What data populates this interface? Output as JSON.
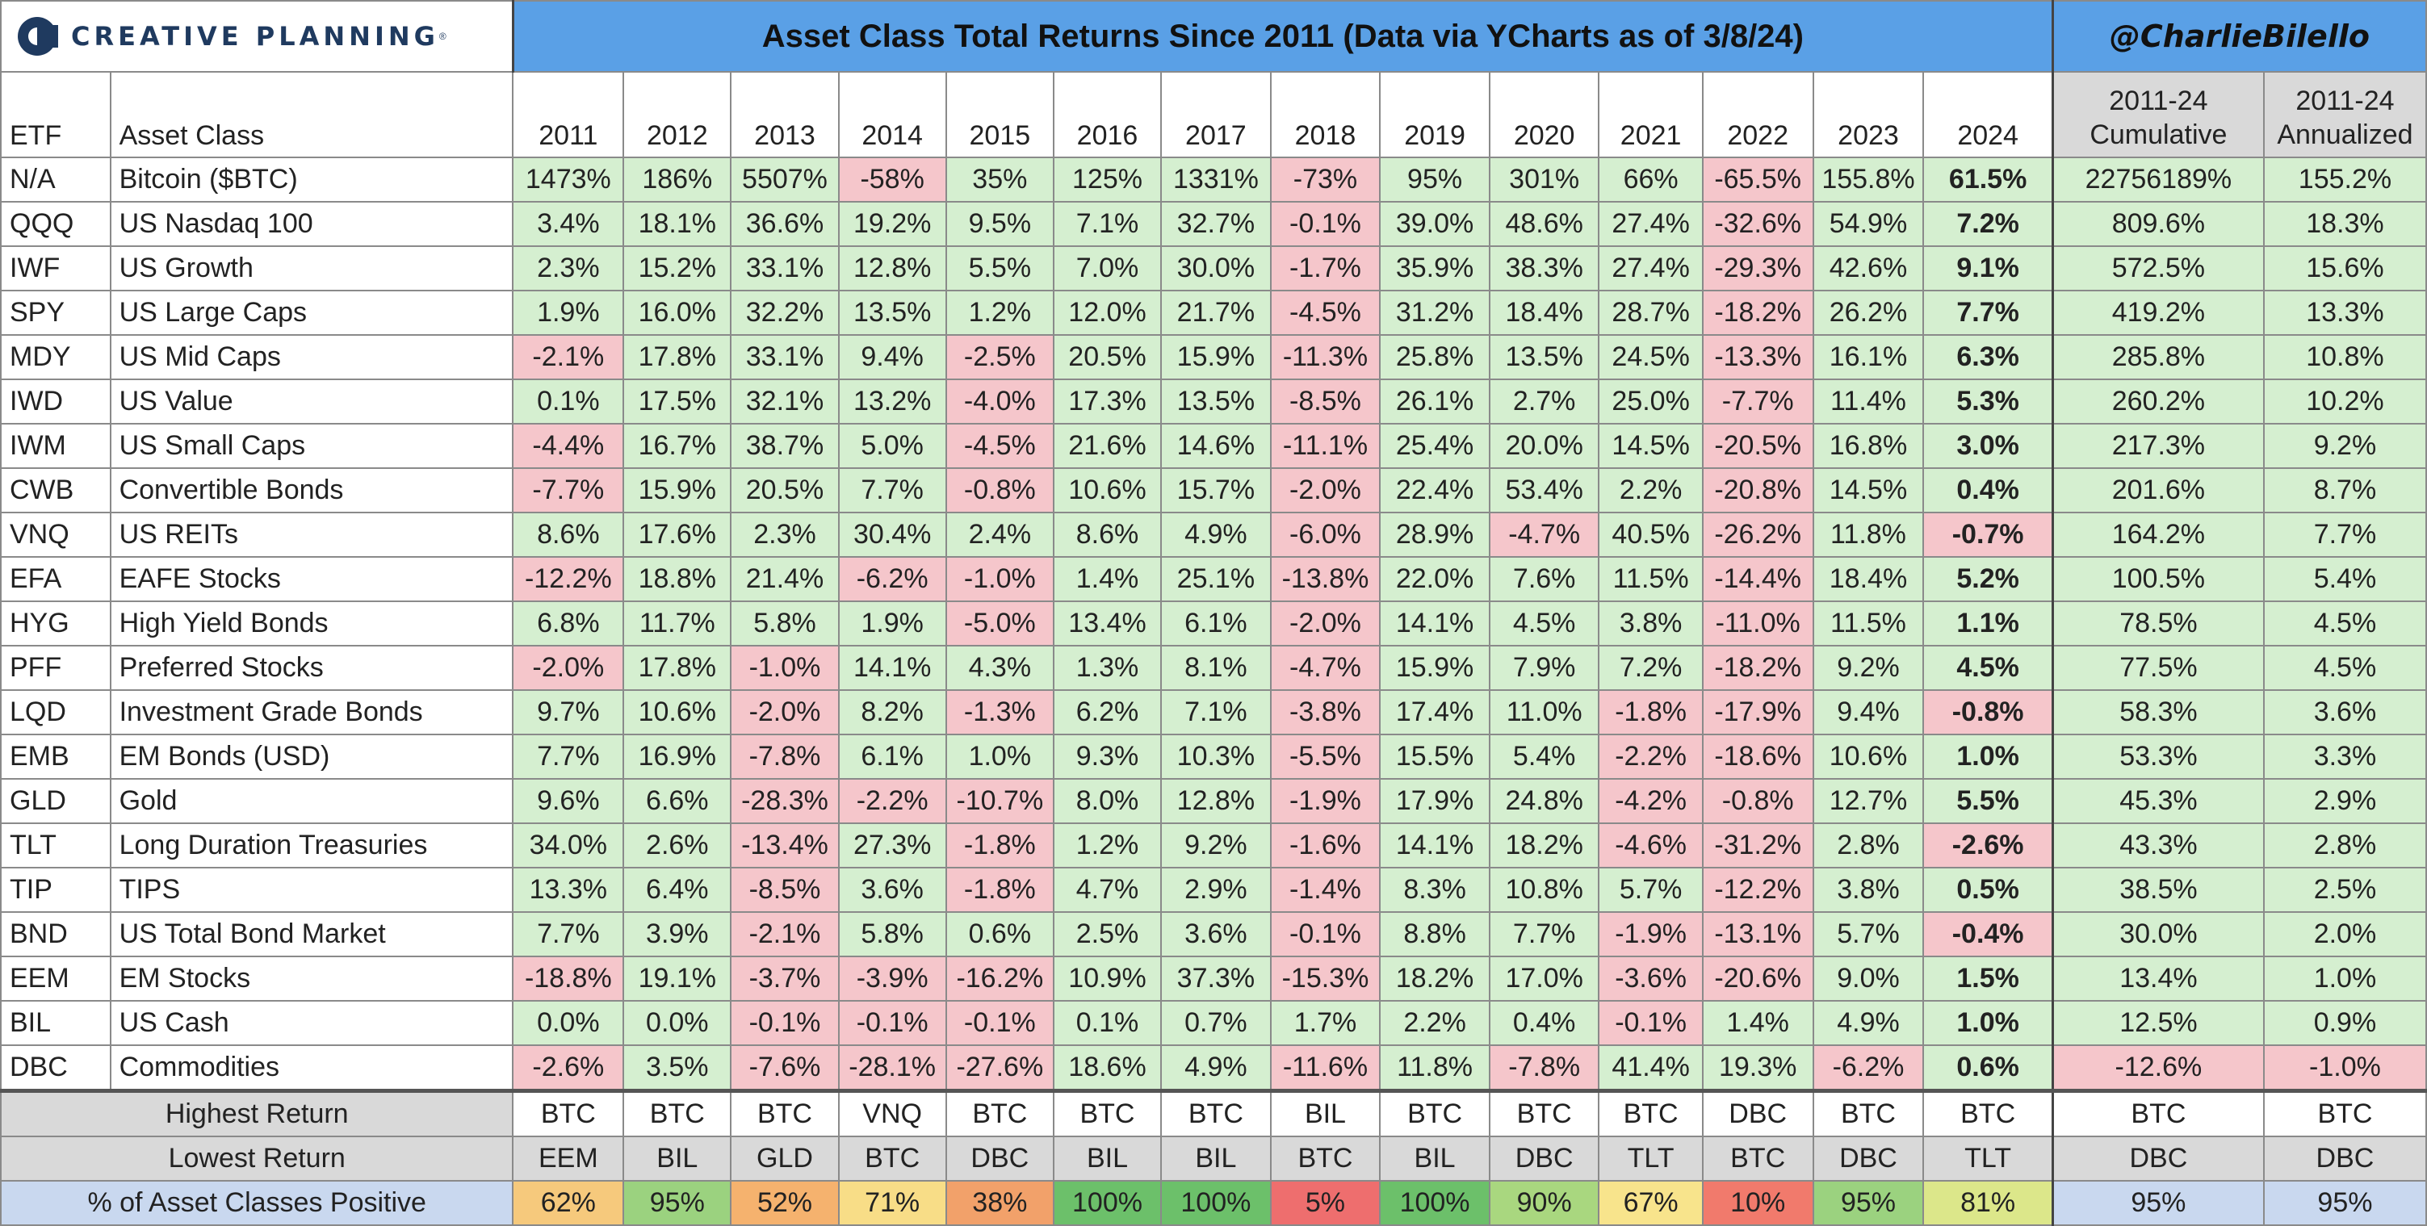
{
  "header": {
    "logo_text": "CREATIVE PLANNING",
    "logo_tm": "®",
    "title": "Asset Class Total Returns Since 2011 (Data via YCharts as of 3/8/24)",
    "handle": "@CharlieBilello"
  },
  "columns": {
    "etf": "ETF",
    "asset_class": "Asset Class",
    "years": [
      "2011",
      "2012",
      "2013",
      "2014",
      "2015",
      "2016",
      "2017",
      "2018",
      "2019",
      "2020",
      "2021",
      "2022",
      "2023",
      "2024"
    ],
    "cumulative": [
      "2011-24",
      "Cumulative"
    ],
    "annualized": [
      "2011-24",
      "Annualized"
    ]
  },
  "chart_data": {
    "type": "table",
    "title": "Asset Class Total Returns Since 2011 (Data via YCharts as of 3/8/24)",
    "rows": [
      {
        "etf": "N/A",
        "asset": "Bitcoin ($BTC)",
        "values": [
          "1473%",
          "186%",
          "5507%",
          "-58%",
          "35%",
          "125%",
          "1331%",
          "-73%",
          "95%",
          "301%",
          "66%",
          "-65.5%",
          "155.8%",
          "61.5%"
        ],
        "cumulative": "22756189%",
        "annualized": "155.2%"
      },
      {
        "etf": "QQQ",
        "asset": "US Nasdaq 100",
        "values": [
          "3.4%",
          "18.1%",
          "36.6%",
          "19.2%",
          "9.5%",
          "7.1%",
          "32.7%",
          "-0.1%",
          "39.0%",
          "48.6%",
          "27.4%",
          "-32.6%",
          "54.9%",
          "7.2%"
        ],
        "cumulative": "809.6%",
        "annualized": "18.3%"
      },
      {
        "etf": "IWF",
        "asset": "US Growth",
        "values": [
          "2.3%",
          "15.2%",
          "33.1%",
          "12.8%",
          "5.5%",
          "7.0%",
          "30.0%",
          "-1.7%",
          "35.9%",
          "38.3%",
          "27.4%",
          "-29.3%",
          "42.6%",
          "9.1%"
        ],
        "cumulative": "572.5%",
        "annualized": "15.6%"
      },
      {
        "etf": "SPY",
        "asset": "US Large Caps",
        "values": [
          "1.9%",
          "16.0%",
          "32.2%",
          "13.5%",
          "1.2%",
          "12.0%",
          "21.7%",
          "-4.5%",
          "31.2%",
          "18.4%",
          "28.7%",
          "-18.2%",
          "26.2%",
          "7.7%"
        ],
        "cumulative": "419.2%",
        "annualized": "13.3%"
      },
      {
        "etf": "MDY",
        "asset": "US Mid Caps",
        "values": [
          "-2.1%",
          "17.8%",
          "33.1%",
          "9.4%",
          "-2.5%",
          "20.5%",
          "15.9%",
          "-11.3%",
          "25.8%",
          "13.5%",
          "24.5%",
          "-13.3%",
          "16.1%",
          "6.3%"
        ],
        "cumulative": "285.8%",
        "annualized": "10.8%"
      },
      {
        "etf": "IWD",
        "asset": "US Value",
        "values": [
          "0.1%",
          "17.5%",
          "32.1%",
          "13.2%",
          "-4.0%",
          "17.3%",
          "13.5%",
          "-8.5%",
          "26.1%",
          "2.7%",
          "25.0%",
          "-7.7%",
          "11.4%",
          "5.3%"
        ],
        "cumulative": "260.2%",
        "annualized": "10.2%"
      },
      {
        "etf": "IWM",
        "asset": "US Small Caps",
        "values": [
          "-4.4%",
          "16.7%",
          "38.7%",
          "5.0%",
          "-4.5%",
          "21.6%",
          "14.6%",
          "-11.1%",
          "25.4%",
          "20.0%",
          "14.5%",
          "-20.5%",
          "16.8%",
          "3.0%"
        ],
        "cumulative": "217.3%",
        "annualized": "9.2%"
      },
      {
        "etf": "CWB",
        "asset": "Convertible Bonds",
        "values": [
          "-7.7%",
          "15.9%",
          "20.5%",
          "7.7%",
          "-0.8%",
          "10.6%",
          "15.7%",
          "-2.0%",
          "22.4%",
          "53.4%",
          "2.2%",
          "-20.8%",
          "14.5%",
          "0.4%"
        ],
        "cumulative": "201.6%",
        "annualized": "8.7%"
      },
      {
        "etf": "VNQ",
        "asset": "US REITs",
        "values": [
          "8.6%",
          "17.6%",
          "2.3%",
          "30.4%",
          "2.4%",
          "8.6%",
          "4.9%",
          "-6.0%",
          "28.9%",
          "-4.7%",
          "40.5%",
          "-26.2%",
          "11.8%",
          "-0.7%"
        ],
        "cumulative": "164.2%",
        "annualized": "7.7%"
      },
      {
        "etf": "EFA",
        "asset": "EAFE Stocks",
        "values": [
          "-12.2%",
          "18.8%",
          "21.4%",
          "-6.2%",
          "-1.0%",
          "1.4%",
          "25.1%",
          "-13.8%",
          "22.0%",
          "7.6%",
          "11.5%",
          "-14.4%",
          "18.4%",
          "5.2%"
        ],
        "cumulative": "100.5%",
        "annualized": "5.4%"
      },
      {
        "etf": "HYG",
        "asset": "High Yield Bonds",
        "values": [
          "6.8%",
          "11.7%",
          "5.8%",
          "1.9%",
          "-5.0%",
          "13.4%",
          "6.1%",
          "-2.0%",
          "14.1%",
          "4.5%",
          "3.8%",
          "-11.0%",
          "11.5%",
          "1.1%"
        ],
        "cumulative": "78.5%",
        "annualized": "4.5%"
      },
      {
        "etf": "PFF",
        "asset": "Preferred Stocks",
        "values": [
          "-2.0%",
          "17.8%",
          "-1.0%",
          "14.1%",
          "4.3%",
          "1.3%",
          "8.1%",
          "-4.7%",
          "15.9%",
          "7.9%",
          "7.2%",
          "-18.2%",
          "9.2%",
          "4.5%"
        ],
        "cumulative": "77.5%",
        "annualized": "4.5%"
      },
      {
        "etf": "LQD",
        "asset": "Investment Grade Bonds",
        "values": [
          "9.7%",
          "10.6%",
          "-2.0%",
          "8.2%",
          "-1.3%",
          "6.2%",
          "7.1%",
          "-3.8%",
          "17.4%",
          "11.0%",
          "-1.8%",
          "-17.9%",
          "9.4%",
          "-0.8%"
        ],
        "cumulative": "58.3%",
        "annualized": "3.6%"
      },
      {
        "etf": "EMB",
        "asset": "EM Bonds (USD)",
        "values": [
          "7.7%",
          "16.9%",
          "-7.8%",
          "6.1%",
          "1.0%",
          "9.3%",
          "10.3%",
          "-5.5%",
          "15.5%",
          "5.4%",
          "-2.2%",
          "-18.6%",
          "10.6%",
          "1.0%"
        ],
        "cumulative": "53.3%",
        "annualized": "3.3%"
      },
      {
        "etf": "GLD",
        "asset": "Gold",
        "values": [
          "9.6%",
          "6.6%",
          "-28.3%",
          "-2.2%",
          "-10.7%",
          "8.0%",
          "12.8%",
          "-1.9%",
          "17.9%",
          "24.8%",
          "-4.2%",
          "-0.8%",
          "12.7%",
          "5.5%"
        ],
        "cumulative": "45.3%",
        "annualized": "2.9%"
      },
      {
        "etf": "TLT",
        "asset": "Long Duration Treasuries",
        "values": [
          "34.0%",
          "2.6%",
          "-13.4%",
          "27.3%",
          "-1.8%",
          "1.2%",
          "9.2%",
          "-1.6%",
          "14.1%",
          "18.2%",
          "-4.6%",
          "-31.2%",
          "2.8%",
          "-2.6%"
        ],
        "cumulative": "43.3%",
        "annualized": "2.8%"
      },
      {
        "etf": "TIP",
        "asset": "TIPS",
        "values": [
          "13.3%",
          "6.4%",
          "-8.5%",
          "3.6%",
          "-1.8%",
          "4.7%",
          "2.9%",
          "-1.4%",
          "8.3%",
          "10.8%",
          "5.7%",
          "-12.2%",
          "3.8%",
          "0.5%"
        ],
        "cumulative": "38.5%",
        "annualized": "2.5%"
      },
      {
        "etf": "BND",
        "asset": "US Total Bond Market",
        "values": [
          "7.7%",
          "3.9%",
          "-2.1%",
          "5.8%",
          "0.6%",
          "2.5%",
          "3.6%",
          "-0.1%",
          "8.8%",
          "7.7%",
          "-1.9%",
          "-13.1%",
          "5.7%",
          "-0.4%"
        ],
        "cumulative": "30.0%",
        "annualized": "2.0%"
      },
      {
        "etf": "EEM",
        "asset": "EM Stocks",
        "values": [
          "-18.8%",
          "19.1%",
          "-3.7%",
          "-3.9%",
          "-16.2%",
          "10.9%",
          "37.3%",
          "-15.3%",
          "18.2%",
          "17.0%",
          "-3.6%",
          "-20.6%",
          "9.0%",
          "1.5%"
        ],
        "cumulative": "13.4%",
        "annualized": "1.0%"
      },
      {
        "etf": "BIL",
        "asset": "US Cash",
        "values": [
          "0.0%",
          "0.0%",
          "-0.1%",
          "-0.1%",
          "-0.1%",
          "0.1%",
          "0.7%",
          "1.7%",
          "2.2%",
          "0.4%",
          "-0.1%",
          "1.4%",
          "4.9%",
          "1.0%"
        ],
        "cumulative": "12.5%",
        "annualized": "0.9%"
      },
      {
        "etf": "DBC",
        "asset": "Commodities",
        "values": [
          "-2.6%",
          "3.5%",
          "-7.6%",
          "-28.1%",
          "-27.6%",
          "18.6%",
          "4.9%",
          "-11.6%",
          "11.8%",
          "-7.8%",
          "41.4%",
          "19.3%",
          "-6.2%",
          "0.6%"
        ],
        "cumulative": "-12.6%",
        "annualized": "-1.0%"
      }
    ],
    "negative_cells": [
      [
        0,
        3
      ],
      [
        0,
        7
      ],
      [
        0,
        11
      ],
      [
        1,
        7
      ],
      [
        1,
        11
      ],
      [
        2,
        7
      ],
      [
        2,
        11
      ],
      [
        3,
        7
      ],
      [
        3,
        11
      ],
      [
        4,
        0
      ],
      [
        4,
        4
      ],
      [
        4,
        7
      ],
      [
        4,
        11
      ],
      [
        5,
        4
      ],
      [
        5,
        7
      ],
      [
        5,
        11
      ],
      [
        6,
        0
      ],
      [
        6,
        4
      ],
      [
        6,
        7
      ],
      [
        6,
        11
      ],
      [
        7,
        0
      ],
      [
        7,
        4
      ],
      [
        7,
        7
      ],
      [
        7,
        11
      ],
      [
        8,
        7
      ],
      [
        8,
        9
      ],
      [
        8,
        11
      ],
      [
        8,
        13
      ],
      [
        9,
        0
      ],
      [
        9,
        3
      ],
      [
        9,
        4
      ],
      [
        9,
        7
      ],
      [
        9,
        11
      ],
      [
        10,
        4
      ],
      [
        10,
        7
      ],
      [
        10,
        11
      ],
      [
        11,
        0
      ],
      [
        11,
        2
      ],
      [
        11,
        7
      ],
      [
        11,
        11
      ],
      [
        12,
        2
      ],
      [
        12,
        4
      ],
      [
        12,
        7
      ],
      [
        12,
        10
      ],
      [
        12,
        11
      ],
      [
        12,
        13
      ],
      [
        13,
        2
      ],
      [
        13,
        7
      ],
      [
        13,
        10
      ],
      [
        13,
        11
      ],
      [
        14,
        2
      ],
      [
        14,
        3
      ],
      [
        14,
        4
      ],
      [
        14,
        7
      ],
      [
        14,
        10
      ],
      [
        14,
        11
      ],
      [
        15,
        2
      ],
      [
        15,
        4
      ],
      [
        15,
        7
      ],
      [
        15,
        10
      ],
      [
        15,
        11
      ],
      [
        15,
        13
      ],
      [
        16,
        2
      ],
      [
        16,
        4
      ],
      [
        16,
        7
      ],
      [
        16,
        11
      ],
      [
        17,
        2
      ],
      [
        17,
        7
      ],
      [
        17,
        10
      ],
      [
        17,
        11
      ],
      [
        17,
        13
      ],
      [
        18,
        0
      ],
      [
        18,
        2
      ],
      [
        18,
        3
      ],
      [
        18,
        4
      ],
      [
        18,
        7
      ],
      [
        18,
        10
      ],
      [
        18,
        11
      ],
      [
        19,
        2
      ],
      [
        19,
        3
      ],
      [
        19,
        4
      ],
      [
        19,
        10
      ],
      [
        20,
        0
      ],
      [
        20,
        2
      ],
      [
        20,
        3
      ],
      [
        20,
        4
      ],
      [
        20,
        7
      ],
      [
        20,
        9
      ],
      [
        20,
        12
      ]
    ],
    "colors": {
      "positive": "#d5efd0",
      "negative": "#f5c6cb",
      "title_bar": "#5aa0e6",
      "summary_grey": "#d9d9d9",
      "pct_row": "#c9d8ef"
    }
  },
  "summary": {
    "highest": {
      "label": "Highest Return",
      "values": [
        "BTC",
        "BTC",
        "BTC",
        "VNQ",
        "BTC",
        "BTC",
        "BTC",
        "BIL",
        "BTC",
        "BTC",
        "BTC",
        "DBC",
        "BTC",
        "BTC"
      ],
      "cumulative": "BTC",
      "annualized": "BTC"
    },
    "lowest": {
      "label": "Lowest Return",
      "values": [
        "EEM",
        "BIL",
        "GLD",
        "BTC",
        "DBC",
        "BIL",
        "BIL",
        "BTC",
        "BIL",
        "DBC",
        "TLT",
        "BTC",
        "DBC",
        "TLT"
      ],
      "cumulative": "DBC",
      "annualized": "DBC"
    },
    "positive": {
      "label": "% of Asset Classes Positive",
      "values": [
        "62%",
        "95%",
        "52%",
        "71%",
        "38%",
        "100%",
        "100%",
        "5%",
        "100%",
        "90%",
        "67%",
        "10%",
        "95%",
        "81%"
      ],
      "colors": [
        "#f6c97c",
        "#9bd27f",
        "#f5b26e",
        "#f8dd87",
        "#f2a16a",
        "#6cc06a",
        "#6cc06a",
        "#ee6e6e",
        "#6cc06a",
        "#a9d77f",
        "#f8e48c",
        "#f17a6c",
        "#9bd27f",
        "#dce78a"
      ],
      "cumulative": "95%",
      "annualized": "95%"
    }
  }
}
